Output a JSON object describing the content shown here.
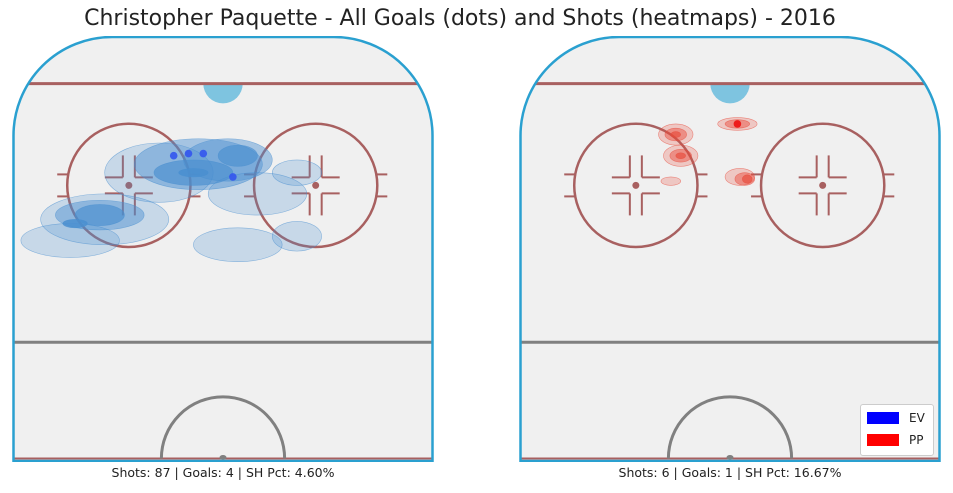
{
  "title": "Christopher Paquette - All Goals (dots) and Shots (heatmaps) - 2016",
  "colors": {
    "ev": "#0000ff",
    "pp": "#ff0000",
    "ice": "#f0f0f0",
    "boards": "#2aa0d0",
    "red_line": "#a86060",
    "center_line": "#808080",
    "crease": "#7ec4e0",
    "ev_heat": "#4a8fd0",
    "ev_dot": "#3355ee",
    "pp_heat": "#e84a3a",
    "pp_dot": "#ee1111"
  },
  "legend": [
    {
      "label": "EV",
      "color": "#0000ff"
    },
    {
      "label": "PP",
      "color": "#ff0000"
    }
  ],
  "chart_data": [
    {
      "type": "scatter",
      "panel": "EV",
      "summary": "Shots: 87 | Goals: 4 | SH Pct: 4.60%",
      "shots": 87,
      "goals": 4,
      "sh_pct": 4.6,
      "goal_dots": [
        {
          "x": -10,
          "y": 72
        },
        {
          "x": -7,
          "y": 72.5
        },
        {
          "x": -4,
          "y": 72.5
        },
        {
          "x": 2,
          "y": 67
        }
      ],
      "shot_density": [
        {
          "x": -13,
          "y": 68,
          "rx": 11,
          "ry": 7,
          "level": 1
        },
        {
          "x": -24,
          "y": 57,
          "rx": 13,
          "ry": 6,
          "level": 1
        },
        {
          "x": -31,
          "y": 52,
          "rx": 10,
          "ry": 4,
          "level": 1
        },
        {
          "x": 7,
          "y": 63,
          "rx": 10,
          "ry": 5,
          "level": 1
        },
        {
          "x": 3,
          "y": 51,
          "rx": 9,
          "ry": 4,
          "level": 1
        },
        {
          "x": 15,
          "y": 68,
          "rx": 5,
          "ry": 3,
          "level": 1
        },
        {
          "x": 15,
          "y": 53,
          "rx": 5,
          "ry": 3.5,
          "level": 1
        },
        {
          "x": -5,
          "y": 70,
          "rx": 13,
          "ry": 6,
          "level": 2
        },
        {
          "x": 1,
          "y": 71,
          "rx": 9,
          "ry": 5,
          "level": 2
        },
        {
          "x": -25,
          "y": 58,
          "rx": 9,
          "ry": 3.5,
          "level": 2
        },
        {
          "x": -6,
          "y": 68,
          "rx": 8,
          "ry": 3,
          "level": 3
        },
        {
          "x": 3,
          "y": 72,
          "rx": 4,
          "ry": 2.5,
          "level": 3
        },
        {
          "x": -25,
          "y": 58,
          "rx": 5,
          "ry": 2.5,
          "level": 3
        },
        {
          "x": -6,
          "y": 68,
          "rx": 3,
          "ry": 1,
          "level": 4
        },
        {
          "x": -30,
          "y": 56,
          "rx": 2.5,
          "ry": 1,
          "level": 4
        }
      ]
    },
    {
      "type": "scatter",
      "panel": "PP",
      "summary": "Shots: 6 | Goals: 1 | SH Pct: 16.67%",
      "shots": 6,
      "goals": 1,
      "sh_pct": 16.67,
      "goal_dots": [
        {
          "x": 1.5,
          "y": 79.5
        }
      ],
      "shot_density": [
        {
          "x": -11,
          "y": 77,
          "rx": 3.5,
          "ry": 2.5,
          "level": 1
        },
        {
          "x": -10,
          "y": 72,
          "rx": 3.5,
          "ry": 2.5,
          "level": 1
        },
        {
          "x": -12,
          "y": 66,
          "rx": 2,
          "ry": 1,
          "level": 1
        },
        {
          "x": 1.5,
          "y": 79.5,
          "rx": 4,
          "ry": 1.5,
          "level": 1
        },
        {
          "x": 2,
          "y": 67,
          "rx": 3,
          "ry": 2,
          "level": 1
        },
        {
          "x": -11,
          "y": 77,
          "rx": 2.2,
          "ry": 1.5,
          "level": 2
        },
        {
          "x": -10,
          "y": 72,
          "rx": 2.2,
          "ry": 1.5,
          "level": 2
        },
        {
          "x": 1.5,
          "y": 79.5,
          "rx": 2.5,
          "ry": 1,
          "level": 2
        },
        {
          "x": 3,
          "y": 66.5,
          "rx": 2,
          "ry": 1.5,
          "level": 2
        },
        {
          "x": -11,
          "y": 77,
          "rx": 1,
          "ry": 0.7,
          "level": 3
        },
        {
          "x": -10,
          "y": 72,
          "rx": 1,
          "ry": 0.7,
          "level": 3
        },
        {
          "x": 3.5,
          "y": 66.5,
          "rx": 1,
          "ry": 1,
          "level": 3
        }
      ]
    }
  ]
}
